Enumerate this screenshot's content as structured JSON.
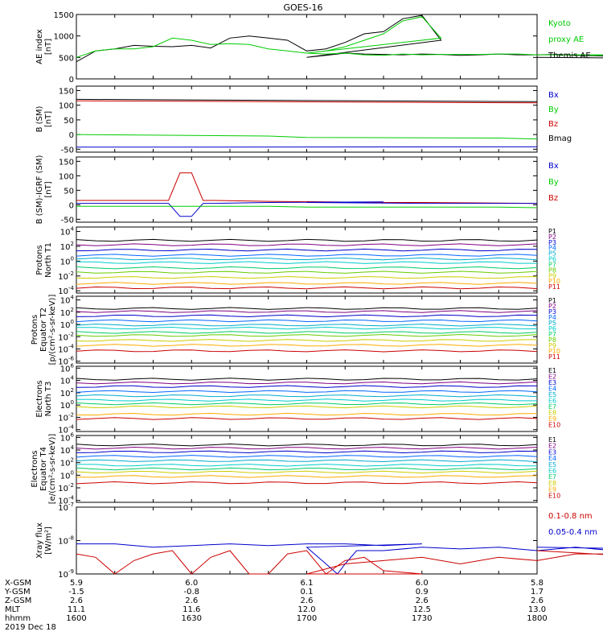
{
  "title": "GOES-16",
  "colors": {
    "black": "#000000",
    "green": "#00cc00",
    "blue": "#0000cc",
    "red": "#cc0000"
  },
  "chart_data": [
    {
      "id": "ae",
      "type": "line",
      "ylabel": [
        "AE index",
        "[nT]"
      ],
      "yticks": [
        "0",
        "500",
        "1000",
        "1500"
      ],
      "ylim": [
        0,
        1500
      ],
      "log": false,
      "legend": [
        {
          "name": "Kyoto",
          "color": "#00cc00"
        },
        {
          "name": "proxy AE",
          "color": "#00cc00"
        },
        {
          "name": "Themis AE",
          "color": "#000000"
        }
      ],
      "series": [
        {
          "name": "Themis AE",
          "color": "#000000",
          "x": [
            1600,
            1605,
            1610,
            1615,
            1620,
            1625,
            1630,
            1635,
            1640,
            1645,
            1650,
            1655,
            1660,
            1665,
            1670,
            1675,
            1680,
            1685,
            1690,
            1695,
            1700,
            1705,
            1710,
            1715,
            1720,
            1725,
            1730,
            1735,
            1740,
            1745,
            1750,
            1755,
            1760,
            1765,
            1770,
            1775,
            1780,
            1785,
            1790,
            1795,
            1800
          ],
          "y": [
            400,
            650,
            700,
            780,
            760,
            750,
            780,
            720,
            950,
            1000,
            950,
            900,
            650,
            700,
            850,
            1050,
            1100,
            1400,
            1480,
            900,
            500,
            550,
            600,
            580,
            570,
            560,
            580,
            570,
            550,
            560,
            580,
            560,
            560,
            570,
            550,
            540,
            520,
            500,
            480,
            480,
            500
          ]
        },
        {
          "name": "Kyoto proxy AE",
          "color": "#00cc00",
          "x": [
            1600,
            1605,
            1610,
            1615,
            1620,
            1625,
            1630,
            1635,
            1640,
            1645,
            1650,
            1655,
            1660,
            1665,
            1670,
            1675,
            1680,
            1685,
            1690,
            1695,
            1700,
            1705,
            1710,
            1715,
            1720,
            1725,
            1730,
            1735,
            1740,
            1745,
            1750,
            1755,
            1760,
            1765,
            1770,
            1775,
            1780,
            1785,
            1790,
            1795,
            1800
          ],
          "y": [
            500,
            650,
            700,
            700,
            750,
            950,
            900,
            800,
            820,
            800,
            700,
            650,
            600,
            650,
            750,
            900,
            1050,
            1350,
            1450,
            950,
            600,
            580,
            600,
            560,
            550,
            580,
            560,
            570,
            570,
            570,
            580,
            580,
            560,
            560,
            560,
            550,
            550,
            560,
            560,
            560,
            560
          ]
        }
      ]
    },
    {
      "id": "bsm",
      "type": "line",
      "ylabel": [
        "B (SM)",
        "[nT]"
      ],
      "yticks": [
        "-50",
        "0",
        "50",
        "100",
        "150"
      ],
      "ylim": [
        -60,
        165
      ],
      "log": false,
      "legend": [
        {
          "name": "Bx",
          "color": "#0000cc"
        },
        {
          "name": "By",
          "color": "#00cc00"
        },
        {
          "name": "Bz",
          "color": "#cc0000"
        },
        {
          "name": "Bmag",
          "color": "#000000"
        }
      ],
      "series": [
        {
          "name": "Bmag",
          "color": "#000000",
          "x": [
            1600,
            1800
          ],
          "y": [
            120,
            112
          ]
        },
        {
          "name": "Bz",
          "color": "#cc0000",
          "x": [
            1600,
            1800
          ],
          "y": [
            115,
            108
          ]
        },
        {
          "name": "By",
          "color": "#00cc00",
          "x": [
            1600,
            1650,
            1700,
            1750,
            1800
          ],
          "y": [
            0,
            -5,
            -10,
            -12,
            -15
          ]
        },
        {
          "name": "Bx",
          "color": "#0000cc",
          "x": [
            1600,
            1800
          ],
          "y": [
            -43,
            -42
          ]
        }
      ]
    },
    {
      "id": "bigrf",
      "type": "line",
      "ylabel": [
        "B (SM)-IGRF (SM)",
        "[nT]"
      ],
      "yticks": [
        "-50",
        "0",
        "50",
        "100",
        "150"
      ],
      "ylim": [
        -60,
        165
      ],
      "log": false,
      "legend": [
        {
          "name": "Bx",
          "color": "#0000cc"
        },
        {
          "name": "By",
          "color": "#00cc00"
        },
        {
          "name": "Bz",
          "color": "#cc0000"
        }
      ],
      "series": [
        {
          "name": "Bz",
          "color": "#cc0000",
          "x": [
            1600,
            1620,
            1624,
            1627,
            1630,
            1633,
            1636,
            1650,
            1680,
            1700,
            1730,
            1760,
            1800
          ],
          "y": [
            15,
            15,
            15,
            110,
            110,
            15,
            15,
            12,
            8,
            8,
            8,
            5,
            5
          ]
        },
        {
          "name": "Bx",
          "color": "#0000cc",
          "x": [
            1600,
            1620,
            1624,
            1627,
            1630,
            1633,
            1636,
            1650,
            1680,
            1700,
            1730,
            1760,
            1800
          ],
          "y": [
            5,
            5,
            5,
            -40,
            -40,
            5,
            5,
            8,
            10,
            8,
            5,
            5,
            5
          ]
        },
        {
          "name": "By",
          "color": "#00cc00",
          "x": [
            1600,
            1650,
            1700,
            1750,
            1800
          ],
          "y": [
            -5,
            -5,
            -8,
            -8,
            -10
          ]
        }
      ]
    },
    {
      "id": "pnorth",
      "type": "line",
      "ylabel": [
        "Protons",
        "North T1"
      ],
      "yticks": [
        "10^-4",
        "10^-2",
        "10^0",
        "10^2",
        "10^4"
      ],
      "ylim": [
        -4.3,
        4.6
      ],
      "log": true,
      "legend": [
        "P1",
        "P2",
        "P3",
        "P4",
        "P5",
        "P6",
        "P7",
        "P8",
        "P9",
        "P10",
        "P11"
      ],
      "levels": [
        2.8,
        2.2,
        1.5,
        0.8,
        0.3,
        -0.2,
        -0.9,
        -1.5,
        -2.2,
        -3.0,
        -3.6
      ],
      "series_colors": [
        "#000000",
        "#800080",
        "#0000cc",
        "#0066ff",
        "#00aacc",
        "#00cccc",
        "#00cc66",
        "#66cc00",
        "#cccc00",
        "#ffaa00",
        "#cc0000"
      ]
    },
    {
      "id": "pequator",
      "type": "line",
      "ylabel": [
        "Protons",
        "Equator T2",
        "[p/(cm²-s-sr-keV)]"
      ],
      "yticks": [
        "10^-6",
        "10^-4",
        "10^-2",
        "10^0",
        "10^2",
        "10^4"
      ],
      "ylim": [
        -6.3,
        4.6
      ],
      "log": true,
      "legend": [
        "P1",
        "P2",
        "P3",
        "P4",
        "P5",
        "P6",
        "P7",
        "P8",
        "P9",
        "P10",
        "P11"
      ],
      "levels": [
        2.6,
        2.1,
        1.4,
        0.6,
        -0.1,
        -0.6,
        -1.3,
        -1.8,
        -2.6,
        -3.4,
        -4.3
      ],
      "series_colors": [
        "#000000",
        "#800080",
        "#0000cc",
        "#0066ff",
        "#00aacc",
        "#00cccc",
        "#00cc66",
        "#66cc00",
        "#cccc00",
        "#ffaa00",
        "#cc0000"
      ]
    },
    {
      "id": "enorth",
      "type": "line",
      "ylabel": [
        "Electrons",
        "North T3"
      ],
      "yticks": [
        "10^-4",
        "10^-2",
        "10^0",
        "10^2",
        "10^4",
        "10^6"
      ],
      "ylim": [
        -4.3,
        6.3
      ],
      "log": true,
      "legend": [
        "E1",
        "E2",
        "E3",
        "E4",
        "E5",
        "E6",
        "E7",
        "E8",
        "E9",
        "E10"
      ],
      "levels": [
        4.2,
        3.6,
        3.0,
        2.2,
        1.5,
        0.8,
        0.2,
        -0.3,
        -1.5,
        -2.2
      ],
      "series_colors": [
        "#000000",
        "#800080",
        "#0000cc",
        "#0066ff",
        "#00aacc",
        "#00cccc",
        "#00cc66",
        "#cccc00",
        "#ffaa00",
        "#cc0000"
      ]
    },
    {
      "id": "eequator",
      "type": "line",
      "ylabel": [
        "Electrons",
        "Equator T4",
        "[e/(cm²-s-sr-keV)]"
      ],
      "yticks": [
        "10^-4",
        "10^-2",
        "10^0",
        "10^2",
        "10^4",
        "10^6"
      ],
      "ylim": [
        -4.3,
        6.3
      ],
      "log": true,
      "legend": [
        "E1",
        "E2",
        "E3",
        "E4",
        "E5",
        "E6",
        "E7",
        "E8",
        "E9",
        "E10"
      ],
      "levels": [
        4.8,
        4.3,
        3.7,
        3.0,
        2.3,
        1.6,
        1.0,
        0.5,
        -0.2,
        -1.2
      ],
      "series_colors": [
        "#000000",
        "#800080",
        "#0000cc",
        "#0066ff",
        "#00aacc",
        "#00cccc",
        "#00cc66",
        "#cccc00",
        "#ffaa00",
        "#cc0000"
      ]
    },
    {
      "id": "xray",
      "type": "line",
      "ylabel": [
        "Xray flux",
        "[W/m²]"
      ],
      "yticks": [
        "10^-9",
        "10^-8",
        "10^-7"
      ],
      "ylim": [
        -9,
        -7
      ],
      "log": true,
      "legend": [
        {
          "name": "0.1-0.8 nm",
          "color": "#cc0000"
        },
        {
          "name": "0.05-0.4 nm",
          "color": "#0000cc"
        }
      ],
      "series": [
        {
          "name": "0.05-0.4 nm",
          "color": "#0000cc",
          "x": [
            1600,
            1610,
            1620,
            1630,
            1640,
            1650,
            1660,
            1670,
            1680,
            1690,
            1700,
            1705,
            1708,
            1710,
            1713,
            1720,
            1730,
            1740,
            1750,
            1760,
            1770,
            1780,
            1790,
            1800
          ],
          "y": [
            -8.1,
            -8.1,
            -8.2,
            -8.15,
            -8.1,
            -8.15,
            -8.1,
            -8.1,
            -8.15,
            -8.1,
            -8.2,
            -8.7,
            -9.0,
            -8.7,
            -8.3,
            -8.3,
            -8.2,
            -8.25,
            -8.2,
            -8.3,
            -8.2,
            -8.3,
            -8.25,
            -8.2
          ]
        },
        {
          "name": "0.1-0.8 nm",
          "color": "#cc0000",
          "x": [
            1600,
            1605,
            1610,
            1615,
            1620,
            1625,
            1630,
            1635,
            1640,
            1645,
            1650,
            1655,
            1660,
            1665,
            1670,
            1675,
            1680,
            1690,
            1700,
            1710,
            1720,
            1730,
            1740,
            1750,
            1760,
            1770,
            1780,
            1790,
            1800
          ],
          "y": [
            -8.4,
            -8.5,
            -9.0,
            -8.6,
            -8.4,
            -8.3,
            -9.0,
            -8.5,
            -8.3,
            -9.0,
            -9.0,
            -8.4,
            -8.3,
            -9.0,
            -8.6,
            -8.5,
            -8.9,
            -9.0,
            -9.0,
            -8.7,
            -8.6,
            -8.5,
            -8.7,
            -8.5,
            -8.6,
            -8.4,
            -8.4,
            -8.5,
            -8.3
          ]
        }
      ]
    }
  ],
  "x_axis": {
    "xlim": [
      1600,
      1800
    ],
    "ticks": [
      1600,
      1630,
      1700,
      1730,
      1800
    ],
    "rows": [
      {
        "label": "X-GSM",
        "values": [
          "5.9",
          "6.0",
          "6.1",
          "6.0",
          "5.8"
        ]
      },
      {
        "label": "Y-GSM",
        "values": [
          "-1.5",
          "-0.8",
          "0.1",
          "0.9",
          "1.7"
        ]
      },
      {
        "label": "Z-GSM",
        "values": [
          "2.6",
          "2.6",
          "2.6",
          "2.6",
          "2.6"
        ]
      },
      {
        "label": "MLT",
        "values": [
          "11.1",
          "11.6",
          "12.0",
          "12.5",
          "13.0"
        ]
      },
      {
        "label": "hhmm",
        "values": [
          "1600",
          "1630",
          "1700",
          "1730",
          "1800"
        ]
      }
    ],
    "date": "2019 Dec 18"
  }
}
